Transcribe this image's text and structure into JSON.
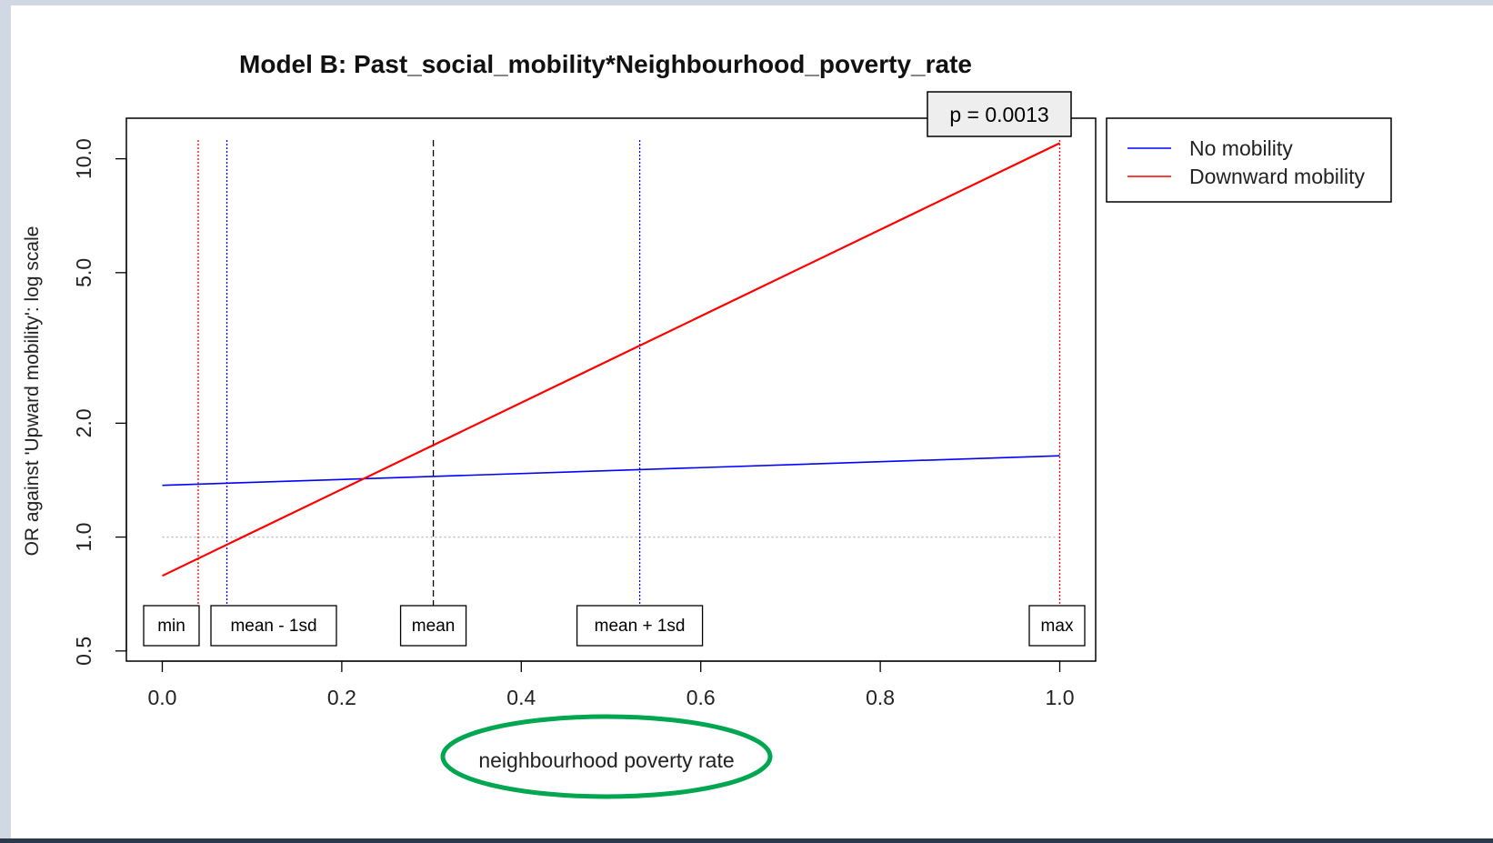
{
  "chart_data": {
    "type": "line",
    "title": "Model B: Past_social_mobility*Neighbourhood_poverty_rate",
    "xlabel": "neighbourhood poverty rate",
    "ylabel": "OR against 'Upward mobility': log scale",
    "xlim": [
      -0.04,
      1.04
    ],
    "ylim": [
      0.47,
      12.8
    ],
    "y_scale": "log",
    "x_ticks": [
      0.0,
      0.2,
      0.4,
      0.6,
      0.8,
      1.0
    ],
    "x_tick_labels": [
      "0.0",
      "0.2",
      "0.4",
      "0.6",
      "0.8",
      "1.0"
    ],
    "y_ticks": [
      0.5,
      1.0,
      2.0,
      5.0,
      10.0
    ],
    "y_tick_labels": [
      "0.5",
      "1.0",
      "2.0",
      "5.0",
      "10.0"
    ],
    "grid": false,
    "series": [
      {
        "name": "No mobility",
        "color": "#0000ff",
        "x": [
          0.0,
          1.0
        ],
        "y": [
          1.37,
          1.64
        ]
      },
      {
        "name": "Downward mobility",
        "color": "#ff0000",
        "x": [
          0.0,
          1.0
        ],
        "y": [
          0.79,
          11.0
        ]
      }
    ],
    "legend": {
      "position": "right",
      "entries": [
        {
          "label": "No mobility",
          "color": "#0000ff"
        },
        {
          "label": "Downward mobility",
          "color": "#ff0000"
        }
      ]
    },
    "reference_line": {
      "y": 1.0,
      "color": "#bbbbbb",
      "style": "dotted"
    },
    "vertical_markers": [
      {
        "label": "min",
        "x": 0.04,
        "color": "#ff0000",
        "style": "dotted"
      },
      {
        "label": "mean - 1sd",
        "x": 0.072,
        "color": "#0000ff",
        "style": "dotted"
      },
      {
        "label": "mean",
        "x": 0.302,
        "color": "#000000",
        "style": "dashed"
      },
      {
        "label": "mean + 1sd",
        "x": 0.532,
        "color": "#0000ff",
        "style": "dotted"
      },
      {
        "label": "max",
        "x": 1.0,
        "color": "#ff0000",
        "style": "dotted"
      }
    ],
    "annotation": {
      "text": "p = 0.0013",
      "position": "top-right"
    },
    "highlight": {
      "target": "xlabel",
      "shape": "ellipse",
      "color": "#00a650"
    }
  }
}
